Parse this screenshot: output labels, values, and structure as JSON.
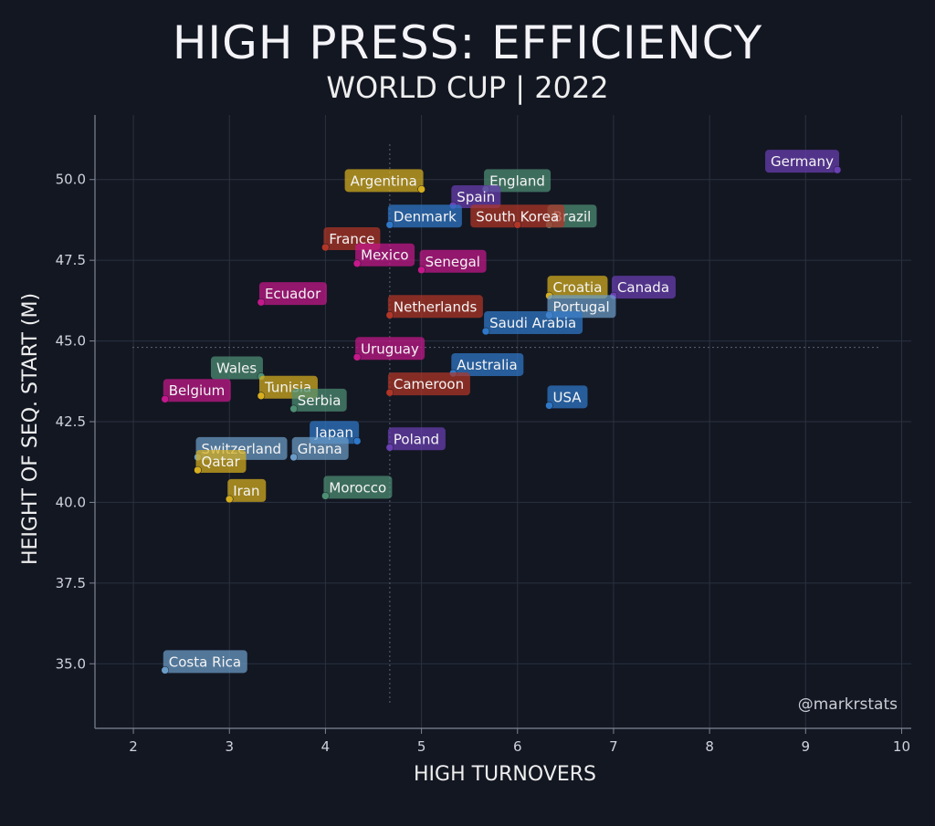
{
  "chart_data": {
    "type": "scatter",
    "title": "HIGH PRESS: EFFICIENCY",
    "subtitle": "WORLD CUP | 2022",
    "xlabel": "HIGH TURNOVERS",
    "ylabel": "HEIGHT OF SEQ. START (M)",
    "xlim": [
      1.6,
      10.1
    ],
    "ylim": [
      33.0,
      52.0
    ],
    "xticks": [
      "2",
      "3",
      "4",
      "5",
      "6",
      "7",
      "8",
      "9",
      "10"
    ],
    "yticks": [
      "35.0",
      "37.5",
      "40.0",
      "42.5",
      "45.0",
      "47.5",
      "50.0"
    ],
    "reference_lines": {
      "x": 4.67,
      "y": 44.8
    },
    "grid": true,
    "watermark": "@markrstats",
    "colors": {
      "background": "#131722",
      "grid": "#2a3140",
      "axis": "#7e8594",
      "gold": "#d6ae1e",
      "green": "#4e8f74",
      "purple": "#6a3fb3",
      "blue": "#2f78c9",
      "red": "#b23627",
      "magenta": "#c5188b",
      "lightblue": "#6b9cc8"
    },
    "points": [
      {
        "label": "Germany",
        "x": 9.33,
        "y": 50.3,
        "color": "purple",
        "pos": "left"
      },
      {
        "label": "Argentina",
        "x": 5.0,
        "y": 49.7,
        "color": "gold",
        "pos": "left"
      },
      {
        "label": "England",
        "x": 5.67,
        "y": 49.7,
        "color": "green",
        "pos": "right"
      },
      {
        "label": "Spain",
        "x": 5.33,
        "y": 49.2,
        "color": "purple",
        "pos": "right"
      },
      {
        "label": "Brazil",
        "x": 6.33,
        "y": 48.6,
        "color": "green",
        "pos": "right"
      },
      {
        "label": "Denmark",
        "x": 4.67,
        "y": 48.6,
        "color": "blue",
        "pos": "right"
      },
      {
        "label": "South Korea",
        "x": 6.0,
        "y": 48.6,
        "color": "red",
        "pos": "center"
      },
      {
        "label": "France",
        "x": 4.0,
        "y": 47.9,
        "color": "red",
        "pos": "right"
      },
      {
        "label": "Mexico",
        "x": 4.33,
        "y": 47.4,
        "color": "magenta",
        "pos": "right"
      },
      {
        "label": "Senegal",
        "x": 5.0,
        "y": 47.2,
        "color": "magenta",
        "pos": "right"
      },
      {
        "label": "Croatia",
        "x": 6.33,
        "y": 46.4,
        "color": "gold",
        "pos": "right"
      },
      {
        "label": "Canada",
        "x": 7.0,
        "y": 46.4,
        "color": "purple",
        "pos": "right"
      },
      {
        "label": "Portugal",
        "x": 6.33,
        "y": 45.8,
        "color": "lightblue",
        "pos": "right"
      },
      {
        "label": "Ecuador",
        "x": 3.33,
        "y": 46.2,
        "color": "magenta",
        "pos": "right"
      },
      {
        "label": "Netherlands",
        "x": 4.67,
        "y": 45.8,
        "color": "red",
        "pos": "right"
      },
      {
        "label": "Saudi Arabia",
        "x": 5.67,
        "y": 45.3,
        "color": "blue",
        "pos": "right"
      },
      {
        "label": "Uruguay",
        "x": 4.33,
        "y": 44.5,
        "color": "magenta",
        "pos": "right"
      },
      {
        "label": "Australia",
        "x": 5.33,
        "y": 44.0,
        "color": "blue",
        "pos": "right"
      },
      {
        "label": "Wales",
        "x": 3.33,
        "y": 43.9,
        "color": "green",
        "pos": "left"
      },
      {
        "label": "Belgium",
        "x": 2.33,
        "y": 43.2,
        "color": "magenta",
        "pos": "right"
      },
      {
        "label": "Tunisia",
        "x": 3.33,
        "y": 43.3,
        "color": "gold",
        "pos": "right"
      },
      {
        "label": "Serbia",
        "x": 3.67,
        "y": 42.9,
        "color": "green",
        "pos": "right"
      },
      {
        "label": "Cameroon",
        "x": 4.67,
        "y": 43.4,
        "color": "red",
        "pos": "right"
      },
      {
        "label": "USA",
        "x": 6.33,
        "y": 43.0,
        "color": "blue",
        "pos": "right"
      },
      {
        "label": "Japan",
        "x": 4.33,
        "y": 41.9,
        "color": "blue",
        "pos": "left"
      },
      {
        "label": "Poland",
        "x": 4.67,
        "y": 41.7,
        "color": "purple",
        "pos": "right"
      },
      {
        "label": "Switzerland",
        "x": 2.67,
        "y": 41.4,
        "color": "lightblue",
        "pos": "right"
      },
      {
        "label": "Ghana",
        "x": 3.67,
        "y": 41.4,
        "color": "lightblue",
        "pos": "right"
      },
      {
        "label": "Qatar",
        "x": 2.67,
        "y": 41.0,
        "color": "gold",
        "pos": "right"
      },
      {
        "label": "Iran",
        "x": 3.0,
        "y": 40.1,
        "color": "gold",
        "pos": "right"
      },
      {
        "label": "Morocco",
        "x": 4.0,
        "y": 40.2,
        "color": "green",
        "pos": "right"
      },
      {
        "label": "Costa Rica",
        "x": 2.33,
        "y": 34.8,
        "color": "lightblue",
        "pos": "right"
      }
    ]
  }
}
